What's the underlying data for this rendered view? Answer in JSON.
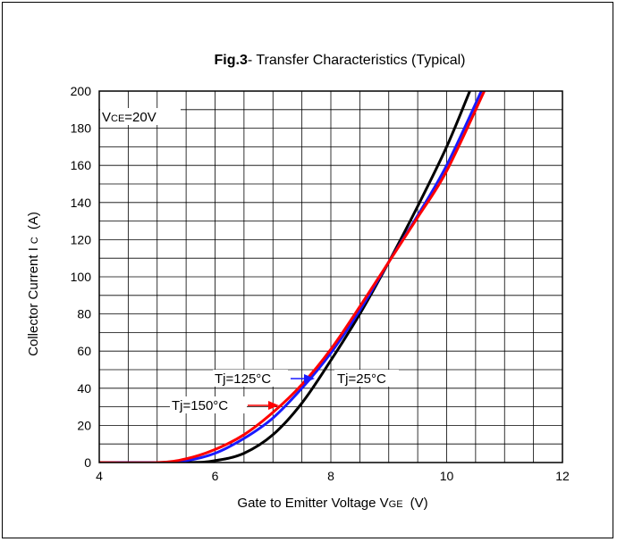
{
  "chart_data": {
    "type": "line",
    "title_bold": "Fig.3",
    "title_rest": "- Transfer Characteristics (Typical)",
    "xlabel": "Gate to Emitter Voltage V",
    "xlabel_sub": "GE",
    "xlabel_unit": "(V)",
    "ylabel": "Collector  Current  I",
    "ylabel_sub": "C",
    "ylabel_unit": "(A)",
    "xlim": [
      4,
      12
    ],
    "ylim": [
      0,
      200
    ],
    "xticks": [
      "4",
      "6",
      "8",
      "10",
      "12"
    ],
    "yticks": [
      "0",
      "20",
      "40",
      "60",
      "80",
      "100",
      "120",
      "140",
      "160",
      "180",
      "200"
    ],
    "grid": true,
    "condition_prefix": "V",
    "condition_sub": "CE",
    "condition_value": "=20V",
    "series": [
      {
        "name": "Tj=25°C",
        "color": "#000000",
        "x": [
          4.0,
          5.5,
          6.0,
          6.5,
          7.0,
          7.5,
          8.0,
          8.5,
          9.0,
          9.5,
          10.0,
          10.4
        ],
        "y": [
          0,
          0,
          1,
          5,
          15,
          32,
          55,
          80,
          108,
          138,
          170,
          200
        ]
      },
      {
        "name": "Tj=125°C",
        "color": "#1a1aff",
        "x": [
          4.0,
          5.0,
          5.5,
          6.0,
          6.5,
          7.0,
          7.5,
          8.0,
          8.5,
          9.0,
          9.5,
          10.0,
          10.6
        ],
        "y": [
          0,
          0,
          1,
          5,
          13,
          24,
          40,
          59,
          82,
          108,
          133,
          160,
          200
        ]
      },
      {
        "name": "Tj=150°C",
        "color": "#ff0000",
        "x": [
          4.0,
          5.0,
          5.5,
          6.0,
          6.5,
          7.0,
          7.5,
          8.0,
          8.5,
          9.0,
          9.5,
          10.0,
          10.65
        ],
        "y": [
          0,
          0,
          2,
          7,
          15,
          27,
          42,
          61,
          84,
          108,
          132,
          157,
          200
        ]
      }
    ],
    "annotations": {
      "t125": "Tj=125°C",
      "t25": "Tj=25°C",
      "t150": "Tj=150°C"
    }
  }
}
